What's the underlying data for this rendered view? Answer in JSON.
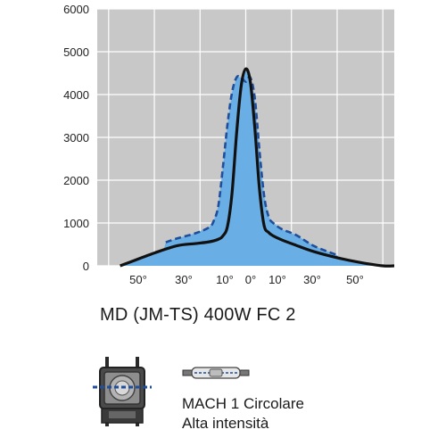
{
  "chart_data": {
    "type": "line",
    "xlabel": "",
    "ylabel": "",
    "x_tick_labels": [
      "50°",
      "30°",
      "10°",
      "0°",
      "10°",
      "30°",
      "50°"
    ],
    "y_tick_labels": [
      "0",
      "1000",
      "2000",
      "3000",
      "4000",
      "5000",
      "6000"
    ],
    "ylim": [
      0,
      6000
    ],
    "xlim": [
      -65,
      65
    ],
    "grid": true,
    "legend": "none",
    "colors": {
      "plot_background": "#c8c8c8",
      "fill": "#6aaee6",
      "solid_line": "#111111",
      "dashed_line": "#1f4e9a",
      "grid": "#ffffff"
    },
    "series": [
      {
        "style": "solid",
        "x": [
          -55,
          -50,
          -40,
          -30,
          -22,
          -16,
          -12,
          -10,
          -8,
          -6,
          -4,
          -2,
          0,
          2,
          4,
          6,
          8,
          10,
          12,
          16,
          22,
          30,
          40,
          50,
          60,
          65
        ],
        "y": [
          0,
          100,
          300,
          470,
          520,
          560,
          620,
          700,
          920,
          1700,
          3100,
          4200,
          4600,
          4300,
          3200,
          1800,
          950,
          780,
          700,
          600,
          480,
          330,
          190,
          80,
          0,
          0
        ]
      },
      {
        "style": "dashed",
        "x": [
          -35,
          -30,
          -22,
          -16,
          -14,
          -12,
          -10,
          -8,
          -6,
          -4,
          -2,
          0,
          2,
          4,
          6,
          8,
          10,
          12,
          16,
          22,
          30,
          40
        ],
        "y": [
          550,
          640,
          760,
          900,
          1050,
          1400,
          2300,
          3300,
          4050,
          4400,
          4400,
          4300,
          4400,
          3900,
          2700,
          1650,
          1150,
          1000,
          850,
          720,
          460,
          250
        ]
      }
    ]
  },
  "caption": "MD (JM-TS) 400W  FC 2",
  "product": {
    "line1": "MACH 1 Circolare",
    "line2": "Alta intensità"
  }
}
